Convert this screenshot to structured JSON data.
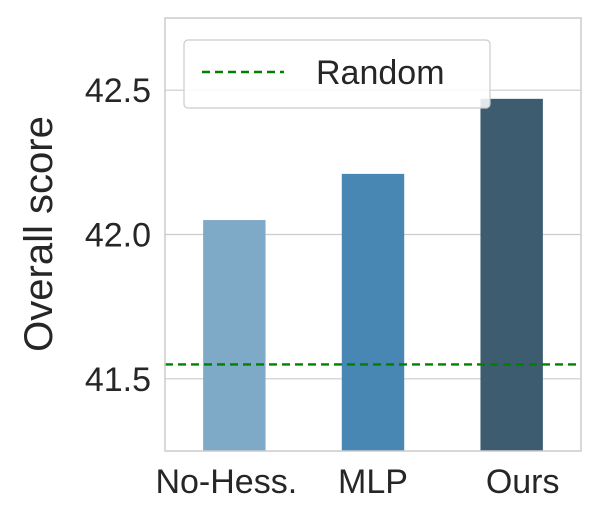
{
  "chart_data": {
    "type": "bar",
    "title": "",
    "xlabel": "",
    "ylabel": "Overall score",
    "categories": [
      "No-Hess.",
      "MLP",
      "Ours"
    ],
    "values": [
      42.05,
      42.21,
      42.47
    ],
    "bar_colors": [
      "#7ea9c7",
      "#4886b3",
      "#3d5c70"
    ],
    "ylim": [
      41.25,
      42.75
    ],
    "yticks": [
      41.5,
      42.0,
      42.5
    ],
    "ytick_labels": [
      "41.5",
      "42.0",
      "42.5"
    ],
    "grid": "horizontal",
    "reference_line": {
      "name": "Random",
      "value": 41.55,
      "color": "#008000",
      "style": "dashed"
    },
    "legend": {
      "position": "top-left",
      "entries": [
        "Random"
      ]
    }
  }
}
